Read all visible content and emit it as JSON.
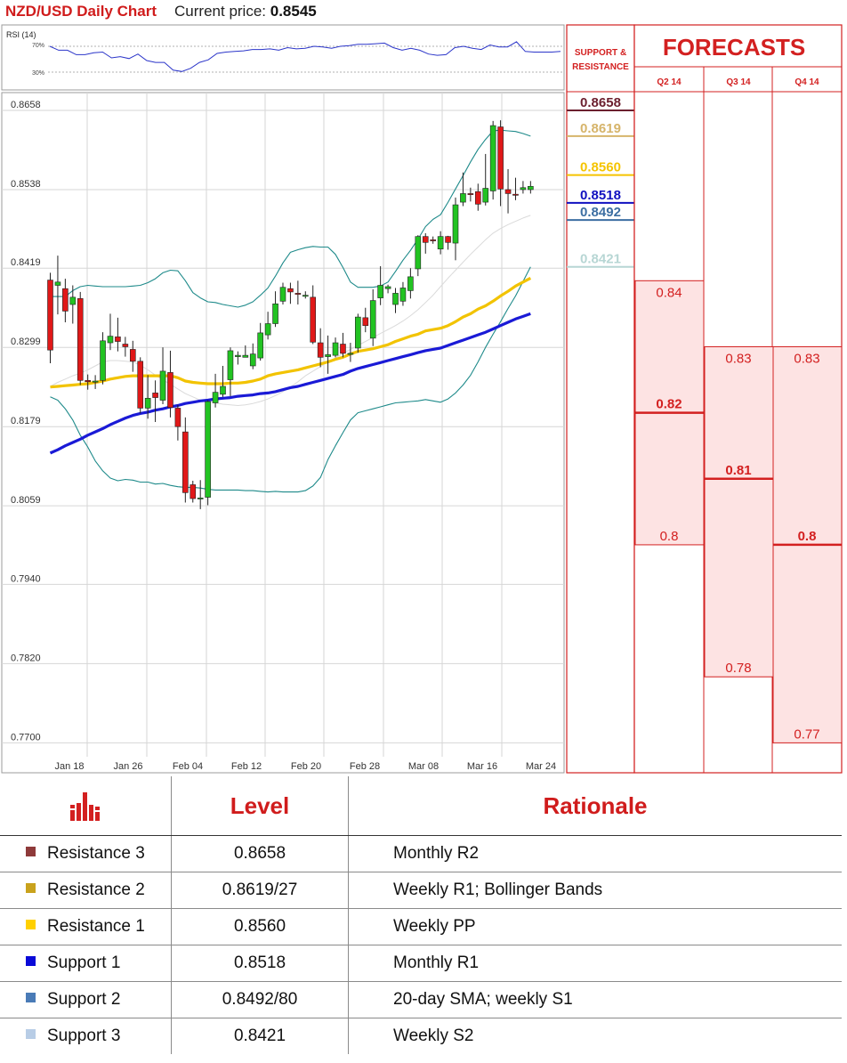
{
  "header": {
    "title": "NZD/USD Daily Chart",
    "price_label": "Current price:",
    "price_value": "0.8545"
  },
  "rsi_panel": {
    "label": "RSI (14)",
    "levels": [
      "70%",
      "30%"
    ],
    "values": [
      70,
      64,
      64,
      57,
      57,
      60,
      61,
      52,
      54,
      51,
      58,
      48,
      45,
      45,
      33,
      31,
      36,
      45,
      49,
      59,
      61,
      62,
      63,
      65,
      65,
      66,
      64,
      68,
      66,
      67,
      70,
      69,
      67,
      70,
      71,
      73,
      73,
      74,
      75,
      68,
      64,
      67,
      64,
      58,
      56,
      57,
      68,
      70,
      67,
      65,
      72,
      69,
      69,
      77,
      62,
      61,
      61,
      61,
      62
    ]
  },
  "price_axis": [
    "0.8658",
    "0.8538",
    "0.8419",
    "0.8299",
    "0.8179",
    "0.8059",
    "0.7940",
    "0.7820",
    "0.7700"
  ],
  "date_axis": [
    "Jan 18",
    "Jan 26",
    "Feb 04",
    "Feb 12",
    "Feb 20",
    "Feb 28",
    "Mar 08",
    "Mar 16",
    "Mar 24"
  ],
  "levels_column": {
    "header": "SUPPORT & RESISTANCE",
    "items": [
      {
        "label": "0.8658",
        "value": 0.8658,
        "color": "#6b1f2e"
      },
      {
        "label": "0.8619",
        "value": 0.8619,
        "color": "#d6b46a"
      },
      {
        "label": "0.8560",
        "value": 0.856,
        "color": "#f5c400"
      },
      {
        "label": "0.8518",
        "value": 0.8518,
        "color": "#1010c0"
      },
      {
        "label": "0.8492",
        "value": 0.8492,
        "color": "#3c6ea2"
      },
      {
        "label": "0.8421",
        "value": 0.8421,
        "color": "#b7d6d4"
      }
    ]
  },
  "forecasts": {
    "title": "FORECASTS",
    "columns": [
      {
        "label": "Q2 14",
        "high": 0.84,
        "mid": 0.82,
        "low": 0.8,
        "high_label": "0.84",
        "mid_label": "0.82",
        "low_label": "0.8"
      },
      {
        "label": "Q3 14",
        "high": 0.83,
        "mid": 0.81,
        "low": 0.78,
        "high_label": "0.83",
        "mid_label": "0.81",
        "low_label": "0.78"
      },
      {
        "label": "Q4 14",
        "high": 0.83,
        "mid": 0.8,
        "low": 0.77,
        "high_label": "0.83",
        "mid_label": "0.8",
        "low_label": "0.77"
      }
    ]
  },
  "chart_data": {
    "type": "candlestick",
    "title": "NZD/USD Daily Chart",
    "ylim": [
      0.77,
      0.8658
    ],
    "yticks": [
      0.8658,
      0.8538,
      0.8419,
      0.8299,
      0.8179,
      0.8059,
      0.794,
      0.782,
      0.77
    ],
    "xticks": [
      "Jan 18",
      "Jan 26",
      "Feb 04",
      "Feb 12",
      "Feb 20",
      "Feb 28",
      "Mar 08",
      "Mar 16",
      "Mar 24"
    ],
    "candles": [
      [
        0.8401,
        0.8295,
        0.8412,
        0.8275
      ],
      [
        0.8393,
        0.8398,
        0.8438,
        0.8349
      ],
      [
        0.8388,
        0.8354,
        0.8403,
        0.8337
      ],
      [
        0.8364,
        0.8375,
        0.8393,
        0.8335
      ],
      [
        0.8373,
        0.8249,
        0.8383,
        0.8242
      ],
      [
        0.8249,
        0.8247,
        0.8258,
        0.8235
      ],
      [
        0.8248,
        0.8248,
        0.8257,
        0.8236
      ],
      [
        0.8249,
        0.8309,
        0.8322,
        0.8243
      ],
      [
        0.8306,
        0.8316,
        0.835,
        0.8295
      ],
      [
        0.8315,
        0.8308,
        0.8344,
        0.8293
      ],
      [
        0.8304,
        0.83,
        0.8315,
        0.8285
      ],
      [
        0.8296,
        0.8278,
        0.8309,
        0.8262
      ],
      [
        0.8278,
        0.8207,
        0.8284,
        0.8199
      ],
      [
        0.8207,
        0.8222,
        0.8257,
        0.8191
      ],
      [
        0.823,
        0.8223,
        0.8249,
        0.8186
      ],
      [
        0.8219,
        0.8263,
        0.8299,
        0.8213
      ],
      [
        0.8261,
        0.8208,
        0.8294,
        0.8193
      ],
      [
        0.8207,
        0.8179,
        0.8212,
        0.8158
      ],
      [
        0.8171,
        0.8079,
        0.8193,
        0.8064
      ],
      [
        0.8091,
        0.807,
        0.8097,
        0.8064
      ],
      [
        0.807,
        0.8071,
        0.8098,
        0.8054
      ],
      [
        0.8072,
        0.8217,
        0.8219,
        0.806
      ],
      [
        0.8215,
        0.8231,
        0.8259,
        0.8208
      ],
      [
        0.8228,
        0.824,
        0.8271,
        0.8224
      ],
      [
        0.825,
        0.8294,
        0.8299,
        0.8225
      ],
      [
        0.8285,
        0.8287,
        0.8293,
        0.8273
      ],
      [
        0.8284,
        0.8287,
        0.8302,
        0.8284
      ],
      [
        0.8271,
        0.8289,
        0.8305,
        0.8266
      ],
      [
        0.8283,
        0.8321,
        0.8336,
        0.8279
      ],
      [
        0.8318,
        0.8335,
        0.8353,
        0.8311
      ],
      [
        0.8335,
        0.8365,
        0.8384,
        0.833
      ],
      [
        0.8369,
        0.839,
        0.8397,
        0.8364
      ],
      [
        0.8388,
        0.8383,
        0.8397,
        0.8365
      ],
      [
        0.8381,
        0.838,
        0.84,
        0.8364
      ],
      [
        0.8378,
        0.8378,
        0.8384,
        0.8373
      ],
      [
        0.8375,
        0.8307,
        0.8393,
        0.8304
      ],
      [
        0.8306,
        0.8284,
        0.8328,
        0.8269
      ],
      [
        0.8285,
        0.8288,
        0.8317,
        0.8259
      ],
      [
        0.8287,
        0.8306,
        0.8314,
        0.8284
      ],
      [
        0.8304,
        0.829,
        0.8321,
        0.8284
      ],
      [
        0.8289,
        0.829,
        0.8306,
        0.8277
      ],
      [
        0.8298,
        0.8345,
        0.835,
        0.8291
      ],
      [
        0.8344,
        0.8332,
        0.8359,
        0.8322
      ],
      [
        0.8313,
        0.837,
        0.8387,
        0.8301
      ],
      [
        0.8374,
        0.8393,
        0.8422,
        0.8363
      ],
      [
        0.8388,
        0.8391,
        0.8394,
        0.8381
      ],
      [
        0.8364,
        0.8381,
        0.8389,
        0.8351
      ],
      [
        0.8369,
        0.8389,
        0.8398,
        0.8362
      ],
      [
        0.8385,
        0.8406,
        0.8419,
        0.8373
      ],
      [
        0.8418,
        0.8467,
        0.8469,
        0.8407
      ],
      [
        0.8467,
        0.8458,
        0.8472,
        0.8441
      ],
      [
        0.8462,
        0.8461,
        0.8467,
        0.8456
      ],
      [
        0.8448,
        0.8467,
        0.8475,
        0.844
      ],
      [
        0.8467,
        0.8458,
        0.8468,
        0.8447
      ],
      [
        0.8457,
        0.8515,
        0.8526,
        0.8431
      ],
      [
        0.8519,
        0.8532,
        0.8564,
        0.8513
      ],
      [
        0.8532,
        0.8531,
        0.8541,
        0.852
      ],
      [
        0.8535,
        0.8516,
        0.8547,
        0.8506
      ],
      [
        0.8519,
        0.854,
        0.8592,
        0.8514
      ],
      [
        0.8536,
        0.8635,
        0.8642,
        0.8523
      ],
      [
        0.8633,
        0.8539,
        0.8643,
        0.8513
      ],
      [
        0.8538,
        0.8532,
        0.8569,
        0.8502
      ],
      [
        0.8531,
        0.853,
        0.8556,
        0.8522
      ],
      [
        0.8538,
        0.8541,
        0.8551,
        0.8532
      ],
      [
        0.8538,
        0.8543,
        0.8551,
        0.8532
      ]
    ],
    "series": [
      {
        "type": "line",
        "color": "#1a1ad6",
        "values": [
          0.8139,
          0.8144,
          0.815,
          0.8155,
          0.816,
          0.8166,
          0.8171,
          0.8176,
          0.8182,
          0.8187,
          0.8192,
          0.8196,
          0.8199,
          0.8201,
          0.8204,
          0.8206,
          0.8209,
          0.8211,
          0.8214,
          0.8216,
          0.8218,
          0.8219,
          0.8221,
          0.8222,
          0.8223,
          0.8225,
          0.8226,
          0.8227,
          0.8229,
          0.823,
          0.8232,
          0.8235,
          0.8238,
          0.824,
          0.8243,
          0.8246,
          0.8249,
          0.8252,
          0.8255,
          0.8258,
          0.8263,
          0.8267,
          0.827,
          0.8273,
          0.8276,
          0.8279,
          0.8282,
          0.8285,
          0.8288,
          0.8291,
          0.8294,
          0.8296,
          0.8298,
          0.8302,
          0.8306,
          0.831,
          0.8314,
          0.8318,
          0.8322,
          0.8327,
          0.8332,
          0.8337,
          0.8342,
          0.8346,
          0.835
        ]
      },
      {
        "type": "line",
        "color": "#f2c300",
        "values": [
          0.8239,
          0.824,
          0.8241,
          0.8242,
          0.8243,
          0.8244,
          0.8246,
          0.8248,
          0.8251,
          0.8253,
          0.8255,
          0.8256,
          0.8256,
          0.8256,
          0.8256,
          0.8256,
          0.8256,
          0.8253,
          0.8248,
          0.8246,
          0.8245,
          0.8244,
          0.8244,
          0.8244,
          0.8245,
          0.8245,
          0.8246,
          0.8248,
          0.8251,
          0.8256,
          0.8259,
          0.8261,
          0.8263,
          0.8265,
          0.8268,
          0.8271,
          0.8274,
          0.8277,
          0.8281,
          0.8284,
          0.8289,
          0.8293,
          0.8295,
          0.8297,
          0.83,
          0.8303,
          0.8308,
          0.8312,
          0.8316,
          0.8319,
          0.8324,
          0.8326,
          0.8328,
          0.8332,
          0.8338,
          0.8345,
          0.835,
          0.8357,
          0.8362,
          0.8369,
          0.8377,
          0.8384,
          0.8392,
          0.8398,
          0.8404
        ]
      },
      {
        "type": "line",
        "color": "#1e8a8a",
        "values": [
          0.8376,
          0.8376,
          0.8376,
          0.8385,
          0.8391,
          0.8393,
          0.8392,
          0.8391,
          0.8391,
          0.8391,
          0.8391,
          0.8392,
          0.8393,
          0.8397,
          0.8403,
          0.8412,
          0.8416,
          0.8415,
          0.84,
          0.8382,
          0.8374,
          0.8368,
          0.8367,
          0.8364,
          0.8362,
          0.836,
          0.8363,
          0.8368,
          0.8378,
          0.8389,
          0.8407,
          0.8427,
          0.8443,
          0.8447,
          0.845,
          0.8452,
          0.8451,
          0.8451,
          0.844,
          0.842,
          0.8398,
          0.839,
          0.839,
          0.839,
          0.8392,
          0.8398,
          0.8414,
          0.8431,
          0.8446,
          0.8463,
          0.8482,
          0.8493,
          0.85,
          0.8519,
          0.8539,
          0.8559,
          0.858,
          0.8599,
          0.8614,
          0.8627,
          0.8628,
          0.8627,
          0.8626,
          0.8623,
          0.8619
        ]
      },
      {
        "type": "line",
        "color": "#1e8a8a",
        "values": [
          0.8224,
          0.8219,
          0.8206,
          0.8189,
          0.8166,
          0.8148,
          0.8127,
          0.8112,
          0.8101,
          0.8097,
          0.8099,
          0.8098,
          0.8095,
          0.8095,
          0.8092,
          0.8093,
          0.809,
          0.8088,
          0.8087,
          0.8087,
          0.8086,
          0.8084,
          0.8083,
          0.8083,
          0.8083,
          0.8083,
          0.8082,
          0.8082,
          0.8081,
          0.808,
          0.8081,
          0.808,
          0.808,
          0.808,
          0.8082,
          0.8089,
          0.8102,
          0.8129,
          0.815,
          0.817,
          0.8189,
          0.82,
          0.8203,
          0.8206,
          0.8209,
          0.8212,
          0.8215,
          0.8216,
          0.8217,
          0.8218,
          0.822,
          0.8218,
          0.8216,
          0.8221,
          0.823,
          0.8242,
          0.8257,
          0.8277,
          0.8299,
          0.8319,
          0.8338,
          0.8358,
          0.8377,
          0.8399,
          0.8421
        ]
      },
      {
        "type": "line",
        "color": "#dadada",
        "values": [
          0.824,
          0.8246,
          0.8251,
          0.8256,
          0.826,
          0.8265,
          0.8271,
          0.8277,
          0.8279,
          0.8279,
          0.8278,
          0.8277,
          0.8272,
          0.8265,
          0.8257,
          0.825,
          0.8243,
          0.8236,
          0.8229,
          0.8224,
          0.8219,
          0.8217,
          0.8215,
          0.8213,
          0.8212,
          0.8211,
          0.8212,
          0.8214,
          0.8217,
          0.8221,
          0.8226,
          0.8232,
          0.8239,
          0.8247,
          0.8256,
          0.8263,
          0.827,
          0.8277,
          0.8283,
          0.829,
          0.8296,
          0.8302,
          0.8308,
          0.8314,
          0.832,
          0.8326,
          0.8332,
          0.8339,
          0.8347,
          0.8356,
          0.8367,
          0.8378,
          0.8391,
          0.8404,
          0.8416,
          0.8428,
          0.844,
          0.8451,
          0.8462,
          0.8472,
          0.8479,
          0.8485,
          0.849,
          0.8495,
          0.8499
        ]
      }
    ]
  },
  "levels_table": {
    "headers": [
      "",
      "Level",
      "Rationale"
    ],
    "rows": [
      {
        "name": "Resistance 3",
        "level": "0.8658",
        "rationale": "Monthly R2",
        "color": "#8e3a3a"
      },
      {
        "name": "Resistance 2",
        "level": "0.8619/27",
        "rationale": "Weekly R1; Bollinger Bands",
        "color": "#c9a21c"
      },
      {
        "name": "Resistance 1",
        "level": "0.8560",
        "rationale": "Weekly PP",
        "color": "#ffd000"
      },
      {
        "name": "Support 1",
        "level": "0.8518",
        "rationale": "Monthly R1",
        "color": "#0a0ad8"
      },
      {
        "name": "Support 2",
        "level": "0.8492/80",
        "rationale": "20-day SMA; weekly S1",
        "color": "#4a7bb7"
      },
      {
        "name": "Support 3",
        "level": "0.8421",
        "rationale": "Weekly S2",
        "color": "#b8cde6"
      }
    ]
  }
}
